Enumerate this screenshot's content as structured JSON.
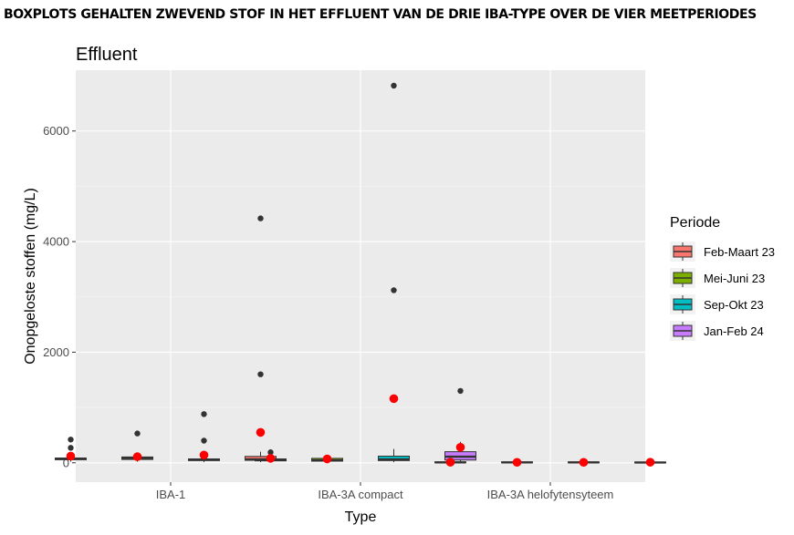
{
  "heading": "BOXPLOTS GEHALTEN ZWEVEND STOF IN HET EFFLUENT VAN DE DRIE IBA-TYPE OVER DE VIER MEETPERIODES",
  "chart_data": {
    "type": "boxplot",
    "title": "Effluent",
    "xlabel": "Type",
    "ylabel": "Onopgeloste stoffen (mg/L)",
    "ylim": [
      -350,
      7100
    ],
    "yticks": [
      0,
      2000,
      4000,
      6000
    ],
    "categories": [
      "IBA-1",
      "IBA-3A compact",
      "IBA-3A helofytensyteem"
    ],
    "grid": true,
    "legend": {
      "title": "Periode",
      "placement": "right"
    },
    "series": [
      {
        "name": "Feb-Maart 23",
        "color": "#F8766D",
        "boxes": [
          {
            "q1": 55,
            "median": 75,
            "q3": 85,
            "whisker_low": 20,
            "whisker_high": 130,
            "mean": 120,
            "outliers": [
              420,
              270
            ]
          },
          {
            "q1": 45,
            "median": 60,
            "q3": 115,
            "whisker_low": 10,
            "whisker_high": 200,
            "mean": 550,
            "outliers": [
              4420,
              1600
            ]
          },
          {
            "q1": 5,
            "median": 8,
            "q3": 15,
            "whisker_low": 0,
            "whisker_high": 40,
            "mean": 10,
            "outliers": [
              65
            ]
          }
        ]
      },
      {
        "name": "Mei-Juni 23",
        "color": "#7CAE00",
        "boxes": [
          {
            "q1": 60,
            "median": 85,
            "q3": 105,
            "whisker_low": 20,
            "whisker_high": 170,
            "mean": 110,
            "outliers": [
              530
            ]
          },
          {
            "q1": 30,
            "median": 45,
            "q3": 80,
            "whisker_low": 10,
            "whisker_high": 120,
            "mean": 70,
            "outliers": []
          },
          {
            "q1": 5,
            "median": 8,
            "q3": 14,
            "whisker_low": 0,
            "whisker_high": 30,
            "mean": 8,
            "outliers": []
          }
        ]
      },
      {
        "name": "Sep-Okt 23",
        "color": "#00BFC4",
        "boxes": [
          {
            "q1": 40,
            "median": 55,
            "q3": 70,
            "whisker_low": 10,
            "whisker_high": 120,
            "mean": 140,
            "outliers": [
              880,
              400
            ]
          },
          {
            "q1": 40,
            "median": 60,
            "q3": 120,
            "whisker_low": 10,
            "whisker_high": 250,
            "mean": 1160,
            "outliers": [
              6820,
              3120
            ]
          },
          {
            "q1": 5,
            "median": 8,
            "q3": 14,
            "whisker_low": 0,
            "whisker_high": 30,
            "mean": 8,
            "outliers": []
          }
        ]
      },
      {
        "name": "Jan-Feb 24",
        "color": "#C77CFF",
        "boxes": [
          {
            "q1": 35,
            "median": 55,
            "q3": 70,
            "whisker_low": 10,
            "whisker_high": 150,
            "mean": 80,
            "outliers": [
              190
            ]
          },
          {
            "q1": 50,
            "median": 110,
            "q3": 200,
            "whisker_low": 10,
            "whisker_high": 380,
            "mean": 280,
            "outliers": [
              1300
            ]
          },
          {
            "q1": 3,
            "median": 6,
            "q3": 12,
            "whisker_low": 0,
            "whisker_high": 25,
            "mean": 10,
            "outliers": []
          }
        ]
      }
    ]
  }
}
